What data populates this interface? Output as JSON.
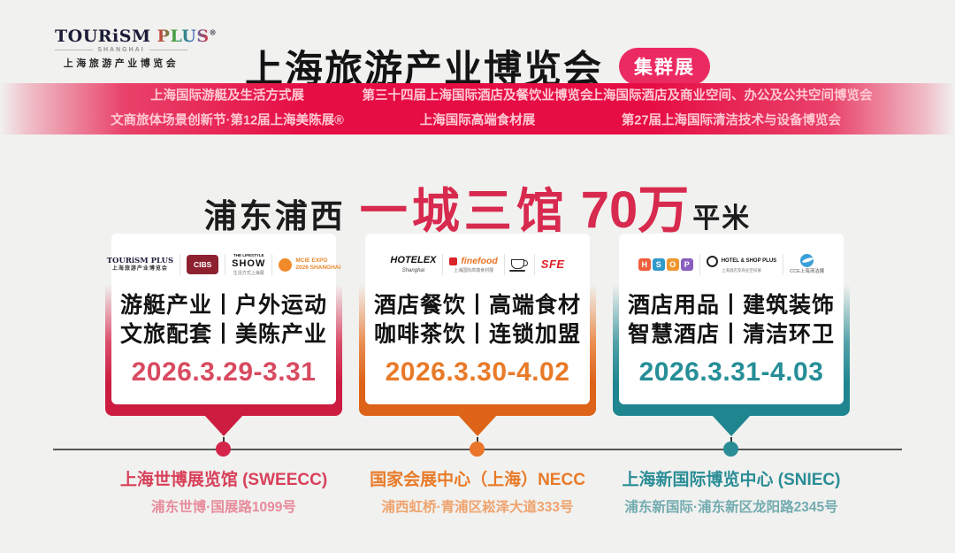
{
  "brand": {
    "name": "TOURiSM",
    "plus": "PLUS",
    "reg": "®",
    "region": "SHANGHAI",
    "cn": "上海旅游产业博览会"
  },
  "header": {
    "title": "上海旅游产业博览会",
    "badge": "集群展"
  },
  "banner": {
    "columns": [
      {
        "line1": "上海国际游艇及生活方式展",
        "line2": "文商旅体场景创新节·第12届上海美陈展®"
      },
      {
        "line1": "第三十四届上海国际酒店及餐饮业博览会",
        "line2": "上海国际高端食材展"
      },
      {
        "line1": "上海国际酒店及商业空间、办公及公共空间博览会",
        "line2": "第27届上海国际清洁技术与设备博览会"
      }
    ]
  },
  "headline": {
    "prefix": "浦东浦西",
    "highlight": "一城三馆",
    "number": "70万",
    "suffix": "平米"
  },
  "colors": {
    "banner_red": "#e60d44",
    "badge_pink": "#ec2a62",
    "headline_red": "#d8294e",
    "card1_accent": "#d5244a",
    "card2_accent": "#e8752a",
    "card3_accent": "#2a8d96"
  },
  "cards": [
    {
      "logos": {
        "tourism_plus": {
          "label": "TOURiSM PLUS",
          "sub": "上海旅游产业博览会"
        },
        "cibs": {
          "label": "CIBS"
        },
        "lifestyle": {
          "top": "THE LIFESTYLE",
          "label": "SHOW",
          "sub": "生活方式上海展"
        },
        "mcie": {
          "label": "MCIE EXPO",
          "sub": "2026 SHANGHAI"
        }
      },
      "category_line1": "游艇产业丨户外运动",
      "category_line2": "文旅配套丨美陈产业",
      "dates": "2026.3.29-3.31",
      "venue": {
        "name": "上海世博展览馆 (SWEECC)",
        "address": "浦东世博·国展路1099号"
      }
    },
    {
      "logos": {
        "hotelex": {
          "label": "HOTELEX",
          "sub": "Shanghai"
        },
        "finefood": {
          "label": "finefood",
          "sub": "上海国际高端食材展"
        },
        "coffee": {
          "icon": "coffee-cup"
        },
        "sfe": {
          "label": "SFE"
        }
      },
      "category_line1": "酒店餐饮丨高端食材",
      "category_line2": "咖啡茶饮丨连锁加盟",
      "dates": "2026.3.30-4.02",
      "venue": {
        "name": "国家会展中心（上海）NECC",
        "address": "浦西虹桥·青浦区崧泽大道333号"
      }
    },
    {
      "logos": {
        "hsop": {
          "letters": [
            "H",
            "S",
            "O",
            "P"
          ]
        },
        "hotel_shop_plus": {
          "label": "HOTEL & SHOP PLUS",
          "sub": "上海酒店及商业空间展"
        },
        "cce": {
          "label": "CCE上海清洁展"
        }
      },
      "category_line1": "酒店用品丨建筑装饰",
      "category_line2": "智慧酒店丨清洁环卫",
      "dates": "2026.3.31-4.03",
      "venue": {
        "name": "上海新国际博览中心 (SNIEC)",
        "address": "浦东新国际·浦东新区龙阳路2345号"
      }
    }
  ]
}
